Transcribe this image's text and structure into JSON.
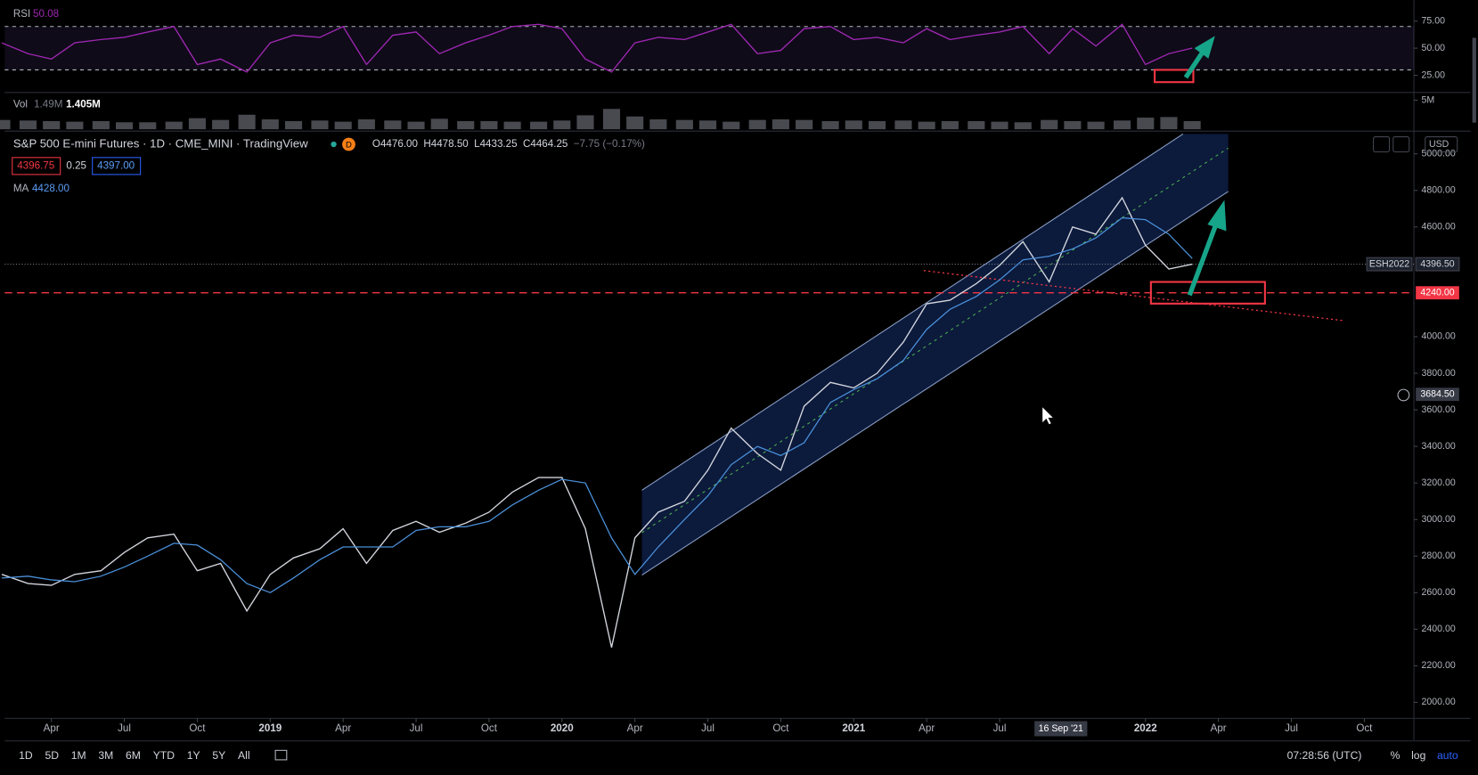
{
  "header": {
    "symbol": "S&P 500 E-mini Futures · 1D · CME_MINI · TradingView",
    "badge": "D",
    "ohlc": [
      "O4476.00",
      "H4478.50",
      "L4433.25",
      "C4464.25",
      "−7.75 (−0.17%)"
    ],
    "bid": "4396.75",
    "spread": "0.25",
    "ask": "4397.00",
    "ma_value": "4428.00",
    "rsi_value": "50.08",
    "vol_avg": "1.49M",
    "vol_value": "1.405M",
    "currency": "USD"
  },
  "toolbar": {
    "ranges": [
      "1D",
      "5D",
      "1M",
      "3M",
      "6M",
      "YTD",
      "1Y",
      "5Y",
      "All"
    ],
    "clock": "07:28:56 (UTC)",
    "options": [
      "%",
      "log",
      "auto"
    ]
  },
  "chart_data": [
    {
      "type": "line",
      "x": [
        2018.08,
        2018.17,
        2018.25,
        2018.33,
        2018.42,
        2018.5,
        2018.58,
        2018.67,
        2018.75,
        2018.83,
        2018.92,
        2019.0,
        2019.08,
        2019.17,
        2019.25,
        2019.33,
        2019.42,
        2019.5,
        2019.58,
        2019.67,
        2019.75,
        2019.83,
        2019.92,
        2020.0,
        2020.08,
        2020.17,
        2020.25,
        2020.33,
        2020.42,
        2020.5,
        2020.58,
        2020.67,
        2020.75,
        2020.83,
        2020.92,
        2021.0,
        2021.08,
        2021.17,
        2021.25,
        2021.33,
        2021.42,
        2021.5,
        2021.58,
        2021.67,
        2021.75,
        2021.83,
        2021.92,
        2022.0,
        2022.08,
        2022.16
      ],
      "series": [
        {
          "name": "ESH2022",
          "color": "#d1d4dc",
          "values": [
            2700,
            2650,
            2640,
            2700,
            2720,
            2820,
            2900,
            2920,
            2720,
            2760,
            2500,
            2700,
            2790,
            2840,
            2950,
            2760,
            2940,
            2990,
            2930,
            2980,
            3040,
            3150,
            3230,
            3230,
            2950,
            2300,
            2900,
            3040,
            3100,
            3270,
            3500,
            3360,
            3270,
            3620,
            3750,
            3720,
            3800,
            3970,
            4180,
            4200,
            4290,
            4390,
            4520,
            4300,
            4600,
            4560,
            4760,
            4500,
            4370,
            4396.5
          ]
        },
        {
          "name": "MA",
          "color": "#4a90d9",
          "values": [
            2680,
            2690,
            2670,
            2660,
            2690,
            2740,
            2800,
            2870,
            2860,
            2780,
            2650,
            2600,
            2680,
            2780,
            2850,
            2850,
            2850,
            2940,
            2960,
            2960,
            2990,
            3080,
            3160,
            3220,
            3200,
            2900,
            2700,
            2850,
            3000,
            3130,
            3300,
            3400,
            3350,
            3420,
            3640,
            3710,
            3770,
            3870,
            4040,
            4150,
            4220,
            4310,
            4420,
            4440,
            4480,
            4540,
            4650,
            4640,
            4560,
            4428
          ]
        }
      ],
      "xlim": [
        2018.09,
        2022.92
      ],
      "ylim": [
        1923,
        5119
      ],
      "log": false,
      "xticks": [
        {
          "value": 2018.25,
          "label": "Apr"
        },
        {
          "value": 2018.5,
          "label": "Jul"
        },
        {
          "value": 2018.75,
          "label": "Oct"
        },
        2019,
        {
          "value": 2019.25,
          "label": "Apr"
        },
        {
          "value": 2019.5,
          "label": "Jul"
        },
        {
          "value": 2019.75,
          "label": "Oct"
        },
        2020,
        {
          "value": 2020.25,
          "label": "Apr"
        },
        {
          "value": 2020.5,
          "label": "Jul"
        },
        {
          "value": 2020.75,
          "label": "Oct"
        },
        2021,
        {
          "value": 2021.25,
          "label": "Apr"
        },
        {
          "value": 2021.5,
          "label": "Jul"
        },
        2022,
        {
          "value": 2022.25,
          "label": "Apr"
        },
        {
          "value": 2022.5,
          "label": "Jul"
        },
        {
          "value": 2022.75,
          "label": "Oct"
        }
      ],
      "yticks": [
        {
          "value": 5000,
          "label": "5000.00"
        },
        {
          "value": 4800,
          "label": "4800.00"
        },
        {
          "value": 4600,
          "label": "4600.00"
        },
        {
          "value": 4000,
          "label": "4000.00"
        },
        {
          "value": 3800,
          "label": "3800.00"
        },
        {
          "value": 3600,
          "label": "3600.00"
        },
        {
          "value": 3400,
          "label": "3400.00"
        },
        {
          "value": 3200,
          "label": "3200.00"
        },
        {
          "value": 3000,
          "label": "3000.00"
        },
        {
          "value": 2800,
          "label": "2800.00"
        },
        {
          "value": 2600,
          "label": "2600.00"
        },
        {
          "value": 2400,
          "label": "2400.00"
        },
        {
          "value": 2200,
          "label": "2200.00"
        },
        {
          "value": 2000,
          "label": "2000.00"
        }
      ],
      "last_price": {
        "value": 4396.5,
        "label": "4396.50"
      },
      "hline": {
        "value": 4240,
        "label": "4240.00"
      },
      "crosshair": {
        "x": {
          "value": 2021.71,
          "label": "16 Sep '21"
        },
        "y": {
          "value": 3684.5,
          "label": "3684.50"
        }
      }
    },
    {
      "type": "line",
      "x": [
        2018.08,
        2018.17,
        2018.25,
        2018.33,
        2018.42,
        2018.5,
        2018.58,
        2018.67,
        2018.75,
        2018.83,
        2018.92,
        2019.0,
        2019.08,
        2019.17,
        2019.25,
        2019.33,
        2019.42,
        2019.5,
        2019.58,
        2019.67,
        2019.75,
        2019.83,
        2019.92,
        2020.0,
        2020.08,
        2020.17,
        2020.25,
        2020.33,
        2020.42,
        2020.5,
        2020.58,
        2020.67,
        2020.75,
        2020.83,
        2020.92,
        2021.0,
        2021.08,
        2021.17,
        2021.25,
        2021.33,
        2021.42,
        2021.5,
        2021.58,
        2021.67,
        2021.75,
        2021.83,
        2021.92,
        2022.0,
        2022.08,
        2022.16
      ],
      "series": [
        {
          "name": "RSI",
          "color": "#9c27b0",
          "values": [
            55,
            45,
            40,
            55,
            58,
            60,
            65,
            70,
            35,
            40,
            28,
            55,
            62,
            60,
            70,
            35,
            62,
            65,
            45,
            55,
            62,
            70,
            72,
            68,
            40,
            28,
            55,
            60,
            58,
            65,
            72,
            45,
            48,
            68,
            70,
            58,
            60,
            55,
            68,
            58,
            62,
            65,
            70,
            45,
            68,
            52,
            72,
            35,
            45,
            50.08
          ]
        }
      ],
      "xlim": [
        2018.09,
        2022.92
      ],
      "ylim": [
        10,
        90
      ],
      "yticks": [
        {
          "value": 75,
          "label": "75.00"
        },
        {
          "value": 50,
          "label": "50.00"
        },
        {
          "value": 25,
          "label": "25.00"
        }
      ],
      "bands": [
        30,
        70
      ]
    },
    {
      "type": "bar",
      "x": [
        2018.08,
        2018.17,
        2018.25,
        2018.33,
        2018.42,
        2018.5,
        2018.58,
        2018.67,
        2018.75,
        2018.83,
        2018.92,
        2019.0,
        2019.08,
        2019.17,
        2019.25,
        2019.33,
        2019.42,
        2019.5,
        2019.58,
        2019.67,
        2019.75,
        2019.83,
        2019.92,
        2020.0,
        2020.08,
        2020.17,
        2020.25,
        2020.33,
        2020.42,
        2020.5,
        2020.58,
        2020.67,
        2020.75,
        2020.83,
        2020.92,
        2021.0,
        2021.08,
        2021.17,
        2021.25,
        2021.33,
        2021.42,
        2021.5,
        2021.58,
        2021.67,
        2021.75,
        2021.83,
        2021.92,
        2022.0,
        2022.08,
        2022.16
      ],
      "series": [
        {
          "name": "Vol",
          "color": "#787b86",
          "values": [
            1600000,
            1500000,
            1400000,
            1300000,
            1400000,
            1200000,
            1200000,
            1300000,
            1900000,
            1600000,
            2500000,
            1700000,
            1400000,
            1500000,
            1300000,
            1700000,
            1500000,
            1300000,
            1800000,
            1400000,
            1400000,
            1300000,
            1300000,
            1500000,
            2400000,
            3500000,
            2200000,
            1700000,
            1600000,
            1500000,
            1300000,
            1600000,
            1700000,
            1600000,
            1400000,
            1500000,
            1400000,
            1500000,
            1300000,
            1400000,
            1400000,
            1300000,
            1200000,
            1600000,
            1400000,
            1300000,
            1500000,
            2000000,
            2100000,
            1405000
          ]
        }
      ],
      "xlim": [
        2018.09,
        2022.92
      ],
      "ylim": [
        0,
        6000000
      ],
      "yticks": [
        {
          "value": 5000000,
          "label": "5M"
        }
      ]
    }
  ]
}
